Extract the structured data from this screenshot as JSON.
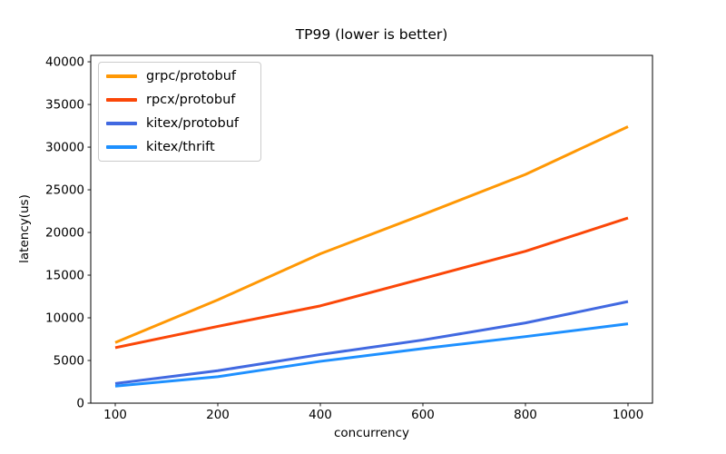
{
  "chart_data": {
    "type": "line",
    "title": "TP99 (lower is better)",
    "xlabel": "concurrency",
    "ylabel": "latency(us)",
    "categories": [
      "100",
      "200",
      "400",
      "600",
      "800",
      "1000"
    ],
    "x_scale": "categorical",
    "ylim": [
      0,
      40750
    ],
    "yticks": [
      0,
      5000,
      10000,
      15000,
      20000,
      25000,
      30000,
      35000,
      40000
    ],
    "grid": false,
    "legend_position": "upper-left",
    "axis_color": "#000000",
    "series": [
      {
        "name": "grpc/protobuf",
        "color": "#FF9805",
        "values": [
          7100,
          12100,
          17500,
          22100,
          26800,
          32400
        ]
      },
      {
        "name": "rpcx/protobuf",
        "color": "#FB4708",
        "values": [
          6500,
          9000,
          11400,
          14600,
          17800,
          21700
        ]
      },
      {
        "name": "kitex/protobuf",
        "color": "#4169E1",
        "values": [
          2300,
          3800,
          5700,
          7400,
          9400,
          11900
        ]
      },
      {
        "name": "kitex/thrift",
        "color": "#1E90FF",
        "values": [
          2000,
          3100,
          4900,
          6400,
          7800,
          9300
        ]
      }
    ]
  }
}
